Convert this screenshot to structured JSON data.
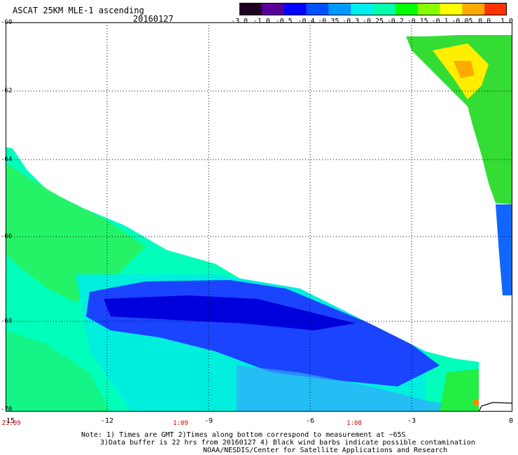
{
  "header": {
    "title": "ASCAT 25KM MLE-1 ascending",
    "date": "20160127"
  },
  "colorbar": {
    "labels": [
      "-3.0",
      "-1.0",
      "-0.5",
      "-0.4",
      "-0.35",
      "-0.3",
      "-0.25",
      "-0.2",
      "-0.15",
      "-0.1",
      "-0.05",
      "0.0",
      "1.0"
    ],
    "colors": [
      "#200020",
      "#5a009a",
      "#0000ff",
      "#0050ff",
      "#0099ff",
      "#00eeee",
      "#00ffaa",
      "#00ff00",
      "#88ff00",
      "#ffff00",
      "#ffaa00",
      "#ff3300"
    ]
  },
  "axes": {
    "y_labels": [
      "-60",
      "-62",
      "-64",
      "-66",
      "-68",
      "-70"
    ],
    "x_labels": [
      "-15",
      "-12",
      "-9",
      "-6",
      "-3",
      "0"
    ],
    "time_labels": [
      "23:09",
      "1:09",
      "1:08"
    ]
  },
  "notes": {
    "line1": "Note: 1) Times are GMT 2)Times along bottom correspond to measurement at ~65S",
    "line2": "3)Data buffer is 22 hrs from 20160127 4) Black wind barbs indicate possible contamination",
    "line3": "NOAA/NESDIS/Center for Satellite Applications and Research"
  }
}
